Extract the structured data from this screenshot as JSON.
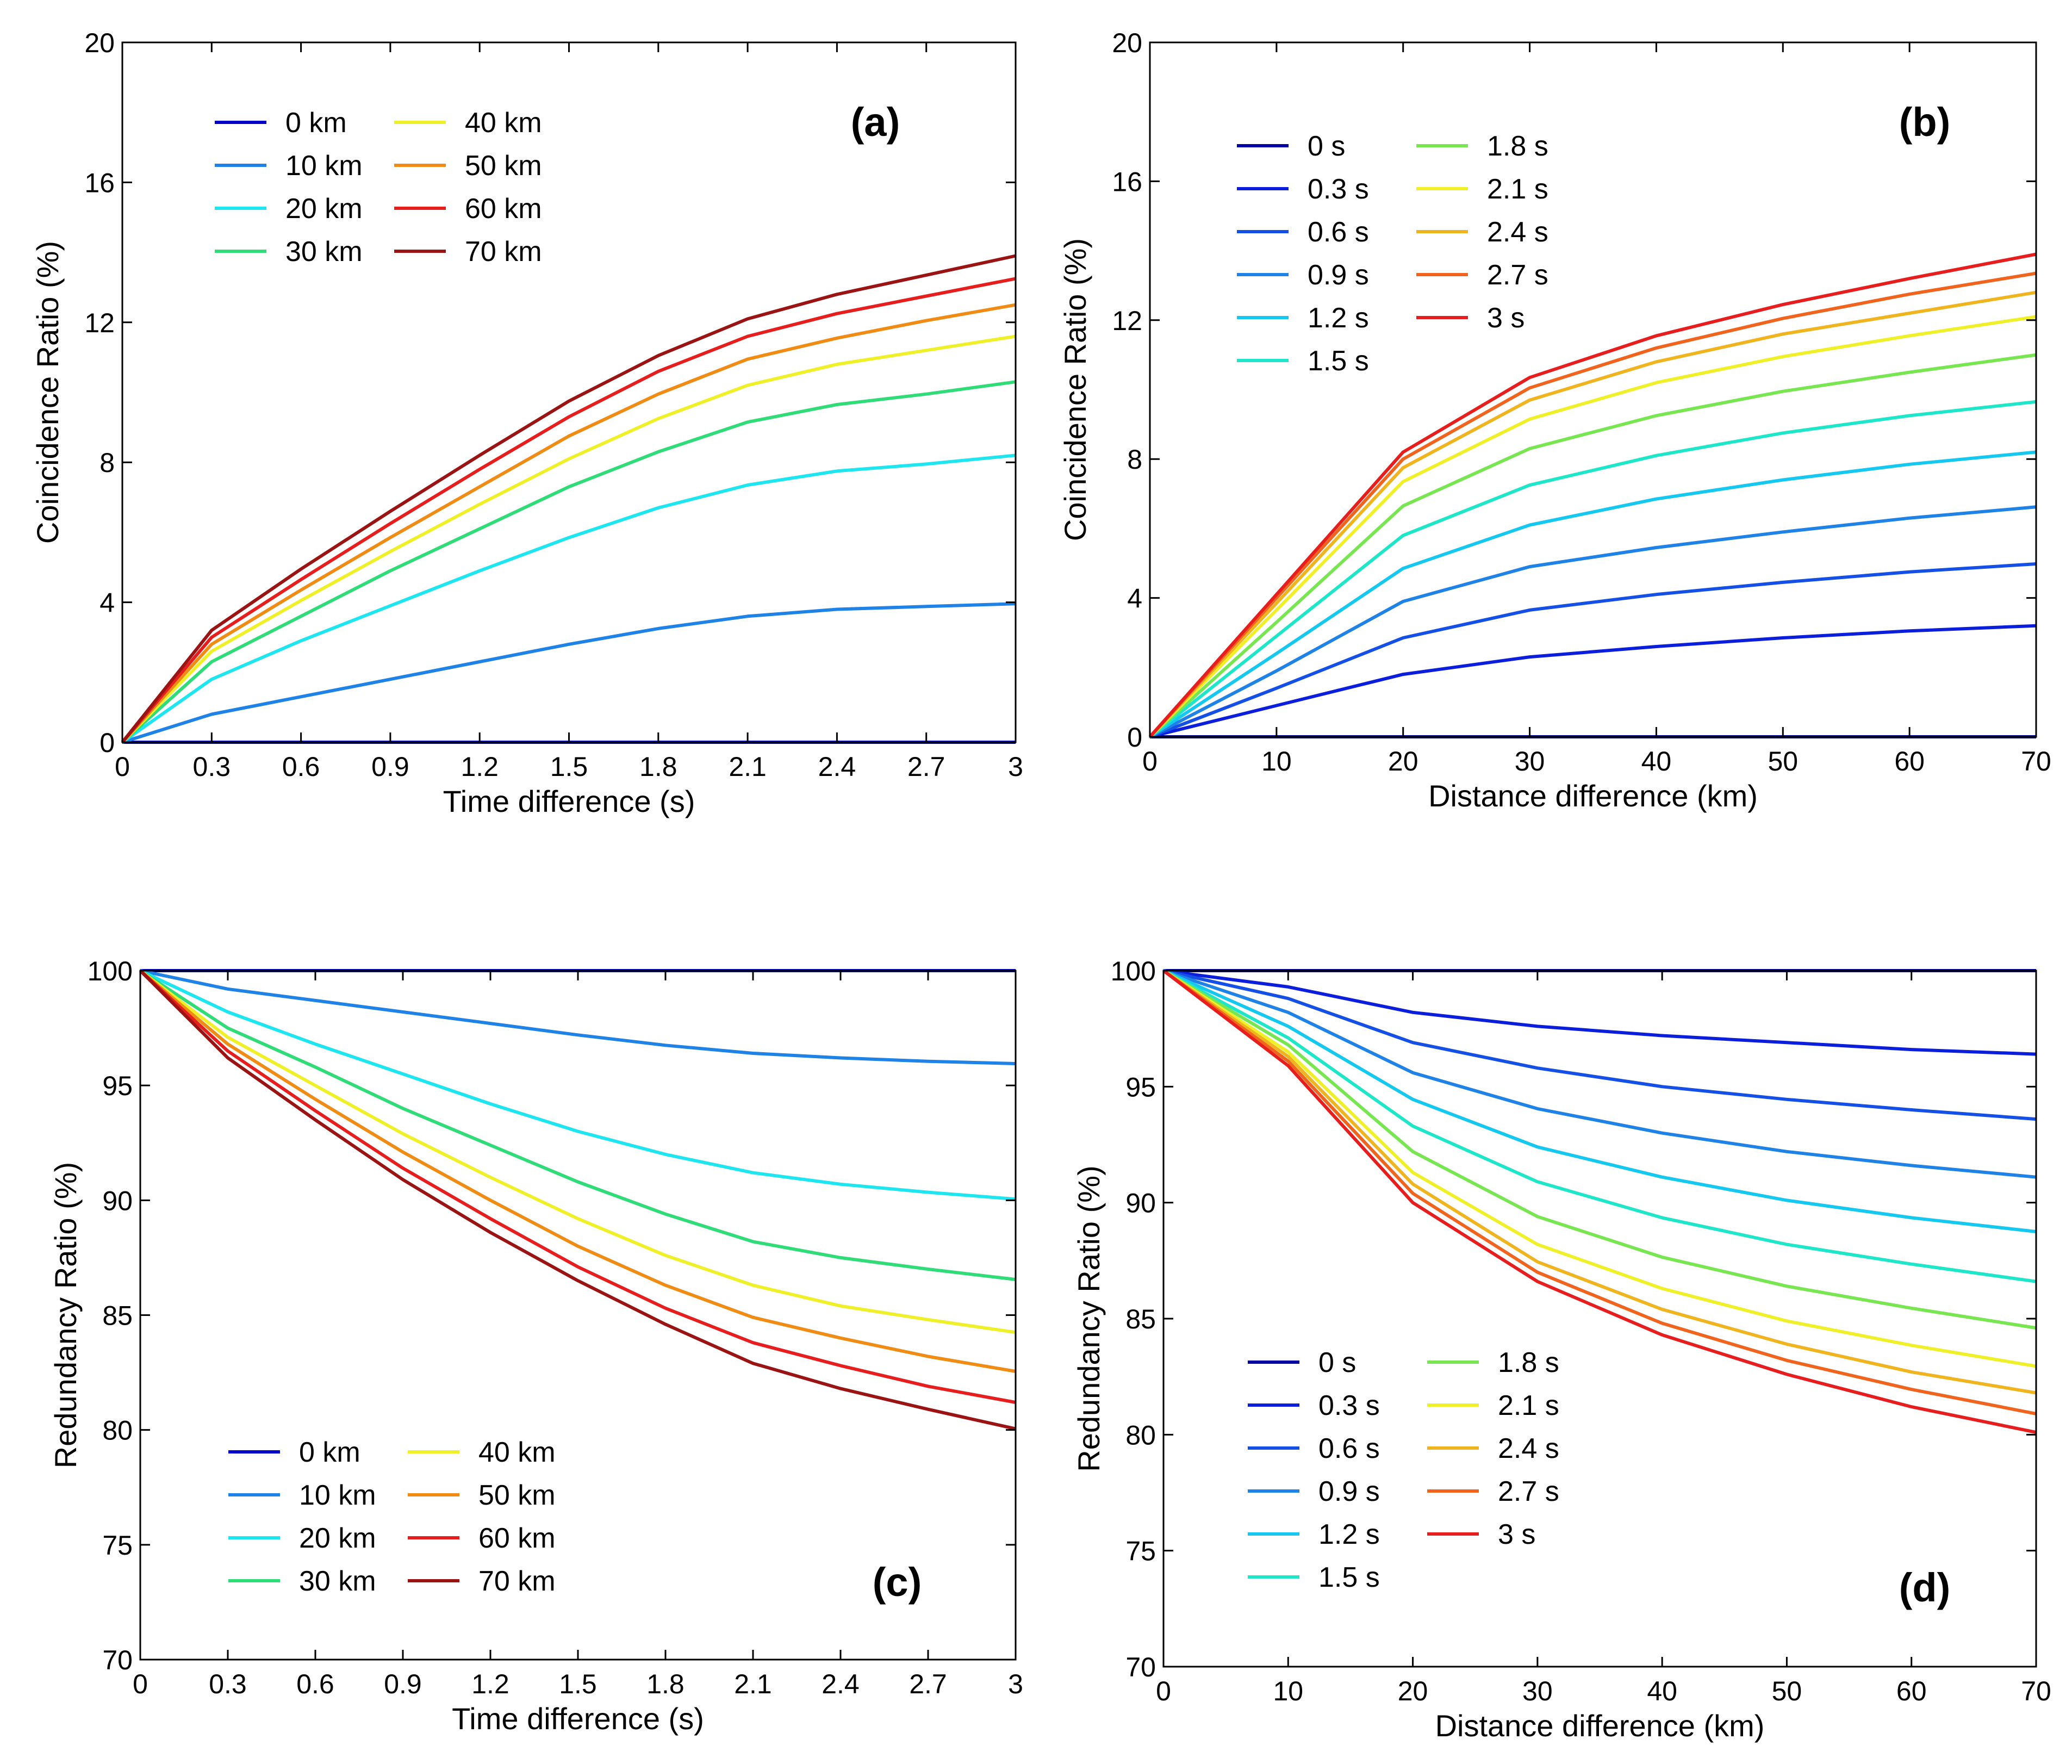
{
  "chart_data": [
    {
      "type": "line",
      "panel_label": "(a)",
      "xlabel": "Time difference (s)",
      "ylabel": "Coincidence Ratio (%)",
      "xlim": [
        0,
        3
      ],
      "ylim": [
        0,
        20
      ],
      "x_ticks": [
        0,
        0.3,
        0.6,
        0.9,
        1.2,
        1.5,
        1.8,
        2.1,
        2.4,
        2.7,
        3
      ],
      "x_tick_labels": [
        "0",
        "0.3",
        "0.6",
        "0.9",
        "1.2",
        "1.5",
        "1.8",
        "2.1",
        "2.4",
        "2.7",
        "3"
      ],
      "y_ticks": [
        0,
        4,
        8,
        12,
        16,
        20
      ],
      "y_tick_labels": [
        "0",
        "4",
        "8",
        "12",
        "16",
        "20"
      ],
      "legend_position": "top-left",
      "legend_columns": 2,
      "x": [
        0,
        0.3,
        0.6,
        0.9,
        1.2,
        1.5,
        1.8,
        2.1,
        2.4,
        2.7,
        3
      ],
      "series": [
        {
          "name": "0 km",
          "color": "#0000c8",
          "values": [
            0,
            0,
            0,
            0,
            0,
            0,
            0,
            0,
            0,
            0,
            0
          ]
        },
        {
          "name": "10 km",
          "color": "#1e82e6",
          "values": [
            0,
            0.8,
            1.3,
            1.8,
            2.3,
            2.8,
            3.25,
            3.6,
            3.8,
            3.88,
            3.96
          ]
        },
        {
          "name": "20 km",
          "color": "#1ee6f0",
          "values": [
            0,
            1.8,
            2.9,
            3.9,
            4.9,
            5.85,
            6.7,
            7.35,
            7.75,
            7.95,
            8.2
          ]
        },
        {
          "name": "30 km",
          "color": "#30dc78",
          "values": [
            0,
            2.3,
            3.6,
            4.9,
            6.1,
            7.3,
            8.3,
            9.15,
            9.65,
            9.95,
            10.3
          ]
        },
        {
          "name": "40 km",
          "color": "#f0f028",
          "values": [
            0,
            2.6,
            4.05,
            5.45,
            6.8,
            8.1,
            9.25,
            10.2,
            10.8,
            11.2,
            11.6
          ]
        },
        {
          "name": "50 km",
          "color": "#f08c14",
          "values": [
            0,
            2.8,
            4.35,
            5.85,
            7.3,
            8.75,
            9.95,
            10.95,
            11.55,
            12.05,
            12.5
          ]
        },
        {
          "name": "60 km",
          "color": "#e61e1e",
          "values": [
            0,
            3.0,
            4.65,
            6.25,
            7.8,
            9.3,
            10.6,
            11.6,
            12.25,
            12.75,
            13.25
          ]
        },
        {
          "name": "70 km",
          "color": "#9b1414",
          "values": [
            0,
            3.2,
            4.95,
            6.6,
            8.2,
            9.75,
            11.05,
            12.1,
            12.8,
            13.35,
            13.9
          ]
        }
      ]
    },
    {
      "type": "line",
      "panel_label": "(b)",
      "xlabel": "Distance difference (km)",
      "ylabel": "Coincidence Ratio (%)",
      "xlim": [
        0,
        70
      ],
      "ylim": [
        0,
        20
      ],
      "x_ticks": [
        0,
        10,
        20,
        30,
        40,
        50,
        60,
        70
      ],
      "x_tick_labels": [
        "0",
        "10",
        "20",
        "30",
        "40",
        "50",
        "60",
        "70"
      ],
      "y_ticks": [
        0,
        4,
        8,
        12,
        16,
        20
      ],
      "y_tick_labels": [
        "0",
        "4",
        "8",
        "12",
        "16",
        "20"
      ],
      "legend_position": "top-left",
      "legend_columns": 2,
      "x": [
        0,
        10,
        20,
        30,
        40,
        50,
        60,
        70
      ],
      "series": [
        {
          "name": "0 s",
          "color": "#0000a0",
          "values": [
            0,
            0,
            0,
            0,
            0,
            0,
            0,
            0
          ]
        },
        {
          "name": "0.3 s",
          "color": "#0a1edc",
          "values": [
            0,
            0.9,
            1.8,
            2.3,
            2.6,
            2.85,
            3.05,
            3.2
          ]
        },
        {
          "name": "0.6 s",
          "color": "#1450e6",
          "values": [
            0,
            1.4,
            2.85,
            3.65,
            4.1,
            4.45,
            4.75,
            4.98
          ]
        },
        {
          "name": "0.9 s",
          "color": "#1e82e6",
          "values": [
            0,
            1.9,
            3.9,
            4.9,
            5.45,
            5.9,
            6.3,
            6.62
          ]
        },
        {
          "name": "1.2 s",
          "color": "#14c8f0",
          "values": [
            0,
            2.4,
            4.85,
            6.1,
            6.85,
            7.4,
            7.85,
            8.2
          ]
        },
        {
          "name": "1.5 s",
          "color": "#1ee6c8",
          "values": [
            0,
            2.9,
            5.8,
            7.25,
            8.1,
            8.75,
            9.25,
            9.65
          ]
        },
        {
          "name": "1.8 s",
          "color": "#78e650",
          "values": [
            0,
            3.3,
            6.65,
            8.3,
            9.25,
            9.95,
            10.5,
            11.0
          ]
        },
        {
          "name": "2.1 s",
          "color": "#f0f028",
          "values": [
            0,
            3.65,
            7.35,
            9.15,
            10.2,
            10.95,
            11.55,
            12.1
          ]
        },
        {
          "name": "2.4 s",
          "color": "#f0b41e",
          "values": [
            0,
            3.85,
            7.75,
            9.7,
            10.8,
            11.6,
            12.2,
            12.8
          ]
        },
        {
          "name": "2.7 s",
          "color": "#f0641e",
          "values": [
            0,
            4.0,
            8.0,
            10.05,
            11.2,
            12.05,
            12.75,
            13.35
          ]
        },
        {
          "name": "3 s",
          "color": "#e61e1e",
          "values": [
            0,
            4.1,
            8.2,
            10.35,
            11.55,
            12.45,
            13.2,
            13.9
          ]
        }
      ]
    },
    {
      "type": "line",
      "panel_label": "(c)",
      "xlabel": "Time difference (s)",
      "ylabel": "Redundancy Ratio (%)",
      "xlim": [
        0,
        3
      ],
      "ylim": [
        70,
        100
      ],
      "x_ticks": [
        0,
        0.3,
        0.6,
        0.9,
        1.2,
        1.5,
        1.8,
        2.1,
        2.4,
        2.7,
        3
      ],
      "x_tick_labels": [
        "0",
        "0.3",
        "0.6",
        "0.9",
        "1.2",
        "1.5",
        "1.8",
        "2.1",
        "2.4",
        "2.7",
        "3"
      ],
      "y_ticks": [
        70,
        75,
        80,
        85,
        90,
        95,
        100
      ],
      "y_tick_labels": [
        "70",
        "75",
        "80",
        "85",
        "90",
        "95",
        "100"
      ],
      "legend_position": "bottom-left",
      "legend_columns": 2,
      "x": [
        0,
        0.3,
        0.6,
        0.9,
        1.2,
        1.5,
        1.8,
        2.1,
        2.4,
        2.7,
        3
      ],
      "series": [
        {
          "name": "0 km",
          "color": "#0000c8",
          "values": [
            100,
            100,
            100,
            100,
            100,
            100,
            100,
            100,
            100,
            100,
            100
          ]
        },
        {
          "name": "10 km",
          "color": "#1e82e6",
          "values": [
            100,
            99.2,
            98.7,
            98.2,
            97.7,
            97.2,
            96.75,
            96.4,
            96.2,
            96.05,
            95.95
          ]
        },
        {
          "name": "20 km",
          "color": "#1ee6f0",
          "values": [
            100,
            98.2,
            96.8,
            95.5,
            94.2,
            93.0,
            92.0,
            91.2,
            90.7,
            90.35,
            90.05
          ]
        },
        {
          "name": "30 km",
          "color": "#30dc78",
          "values": [
            100,
            97.5,
            95.8,
            94.0,
            92.4,
            90.8,
            89.4,
            88.2,
            87.5,
            87.0,
            86.55
          ]
        },
        {
          "name": "40 km",
          "color": "#f0f028",
          "values": [
            100,
            97.1,
            95.0,
            92.9,
            91.0,
            89.2,
            87.6,
            86.3,
            85.4,
            84.8,
            84.25
          ]
        },
        {
          "name": "50 km",
          "color": "#f08c14",
          "values": [
            100,
            96.8,
            94.4,
            92.1,
            90.0,
            88.0,
            86.3,
            84.9,
            84.0,
            83.2,
            82.55
          ]
        },
        {
          "name": "60 km",
          "color": "#e61e1e",
          "values": [
            100,
            96.5,
            93.9,
            91.4,
            89.2,
            87.1,
            85.3,
            83.8,
            82.8,
            81.9,
            81.2
          ]
        },
        {
          "name": "70 km",
          "color": "#9b1414",
          "values": [
            100,
            96.2,
            93.5,
            90.9,
            88.6,
            86.5,
            84.6,
            82.9,
            81.8,
            80.9,
            80.05
          ]
        }
      ]
    },
    {
      "type": "line",
      "panel_label": "(d)",
      "xlabel": "Distance difference (km)",
      "ylabel": "Redundancy Ratio (%)",
      "xlim": [
        0,
        70
      ],
      "ylim": [
        70,
        100
      ],
      "x_ticks": [
        0,
        10,
        20,
        30,
        40,
        50,
        60,
        70
      ],
      "x_tick_labels": [
        "0",
        "10",
        "20",
        "30",
        "40",
        "50",
        "60",
        "70"
      ],
      "y_ticks": [
        70,
        75,
        80,
        85,
        90,
        95,
        100
      ],
      "y_tick_labels": [
        "70",
        "75",
        "80",
        "85",
        "90",
        "95",
        "100"
      ],
      "legend_position": "bottom-left",
      "legend_columns": 2,
      "x": [
        0,
        10,
        20,
        30,
        40,
        50,
        60,
        70
      ],
      "series": [
        {
          "name": "0 s",
          "color": "#0000a0",
          "values": [
            100,
            100,
            100,
            100,
            100,
            100,
            100,
            100
          ]
        },
        {
          "name": "0.3 s",
          "color": "#0a1edc",
          "values": [
            100,
            99.3,
            98.2,
            97.6,
            97.2,
            96.9,
            96.6,
            96.4
          ]
        },
        {
          "name": "0.6 s",
          "color": "#1450e6",
          "values": [
            100,
            98.8,
            96.9,
            95.8,
            95.0,
            94.45,
            94.0,
            93.6
          ]
        },
        {
          "name": "0.9 s",
          "color": "#1e82e6",
          "values": [
            100,
            98.2,
            95.6,
            94.05,
            93.0,
            92.2,
            91.6,
            91.1
          ]
        },
        {
          "name": "1.2 s",
          "color": "#14c8f0",
          "values": [
            100,
            97.6,
            94.45,
            92.4,
            91.1,
            90.1,
            89.35,
            88.75
          ]
        },
        {
          "name": "1.5 s",
          "color": "#1ee6c8",
          "values": [
            100,
            97.1,
            93.3,
            90.9,
            89.35,
            88.2,
            87.35,
            86.6
          ]
        },
        {
          "name": "1.8 s",
          "color": "#78e650",
          "values": [
            100,
            96.8,
            92.2,
            89.4,
            87.65,
            86.4,
            85.45,
            84.6
          ]
        },
        {
          "name": "2.1 s",
          "color": "#f0f028",
          "values": [
            100,
            96.5,
            91.3,
            88.2,
            86.3,
            84.9,
            83.85,
            82.95
          ]
        },
        {
          "name": "2.4 s",
          "color": "#f0b41e",
          "values": [
            100,
            96.3,
            90.8,
            87.45,
            85.4,
            83.9,
            82.7,
            81.8
          ]
        },
        {
          "name": "2.7 s",
          "color": "#f0641e",
          "values": [
            100,
            96.1,
            90.4,
            87.0,
            84.8,
            83.2,
            81.95,
            80.9
          ]
        },
        {
          "name": "3 s",
          "color": "#e61e1e",
          "values": [
            100,
            95.9,
            90.0,
            86.6,
            84.3,
            82.6,
            81.2,
            80.1
          ]
        }
      ]
    }
  ]
}
